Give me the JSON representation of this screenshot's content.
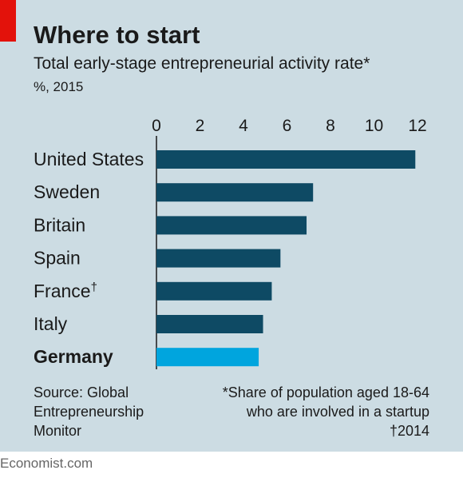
{
  "header": {
    "title": "Where to start",
    "subtitle": "Total early-stage entrepreneurial activity rate*",
    "unit": "%, 2015"
  },
  "colors": {
    "background": "#ccdce3",
    "bar": "#0e4a64",
    "highlight": "#00a5de",
    "accent": "#e3120b"
  },
  "chart_data": {
    "type": "bar",
    "orientation": "horizontal",
    "categories": [
      "United States",
      "Sweden",
      "Britain",
      "Spain",
      "France†",
      "Italy",
      "Germany"
    ],
    "values": [
      11.9,
      7.2,
      6.9,
      5.7,
      5.3,
      4.9,
      4.7
    ],
    "highlight": "Germany",
    "xlim": [
      0,
      12
    ],
    "xticks": [
      "0",
      "2",
      "4",
      "6",
      "8",
      "10",
      "12"
    ],
    "x_axis_position": "top",
    "grid": false
  },
  "footer": {
    "source_lines": [
      "Source: Global",
      "Entrepreneurship",
      "Monitor"
    ],
    "note_lines": [
      "*Share of population aged 18-64",
      "who are involved in a startup",
      "†2014"
    ],
    "logo": "Economist.com"
  }
}
